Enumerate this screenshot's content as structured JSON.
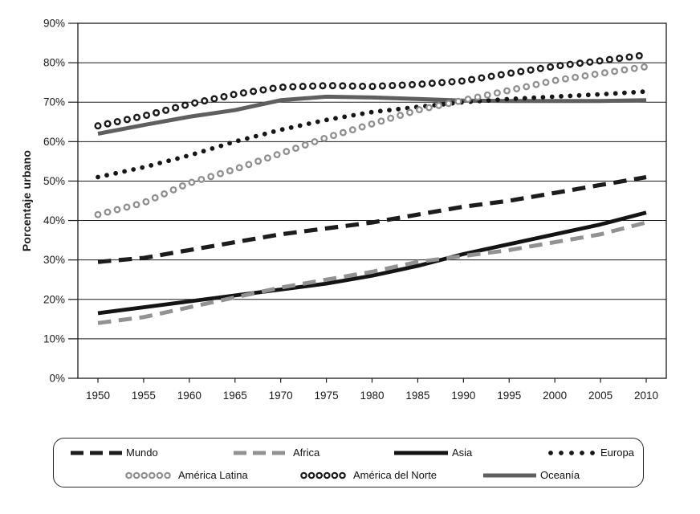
{
  "chart_data": {
    "type": "line",
    "title": "",
    "ylabel": "Porcentaje urbano",
    "xlabel": "",
    "ylim": [
      0,
      90
    ],
    "y_tick_step": 10,
    "y_tick_labels": [
      "0%",
      "10%",
      "20%",
      "30%",
      "40%",
      "50%",
      "60%",
      "70%",
      "80%",
      "90%"
    ],
    "x": [
      1950,
      1955,
      1960,
      1965,
      1970,
      1975,
      1980,
      1985,
      1990,
      1995,
      2000,
      2005,
      2010
    ],
    "x_tick_labels": [
      "1950",
      "1955",
      "1960",
      "1965",
      "1970",
      "1975",
      "1980",
      "1985",
      "1990",
      "1995",
      "2000",
      "2005",
      "2010"
    ],
    "grid": true,
    "legend_position": "bottom",
    "series": [
      {
        "name": "Mundo",
        "style": "dash",
        "color": "#1c1c1c",
        "values": [
          29.5,
          30.5,
          32.5,
          34.5,
          36.5,
          38,
          39.5,
          41.5,
          43.5,
          45,
          47,
          49,
          51
        ]
      },
      {
        "name": "Africa",
        "style": "dash",
        "color": "#929292",
        "values": [
          14,
          15.5,
          18,
          20.5,
          23,
          25,
          27,
          29.5,
          31,
          32.5,
          34.5,
          36.5,
          39.5
        ]
      },
      {
        "name": "Asia",
        "style": "solid",
        "color": "#141414",
        "values": [
          16.5,
          18,
          19.5,
          21,
          22.5,
          24,
          26,
          28.5,
          31.5,
          34,
          36.5,
          39,
          42
        ]
      },
      {
        "name": "Europa",
        "style": "dot",
        "color": "#161616",
        "values": [
          51,
          53.5,
          56.5,
          60,
          63,
          65.5,
          67.5,
          68.8,
          70,
          70.8,
          71.4,
          72,
          72.7
        ]
      },
      {
        "name": "América Latina",
        "style": "ring",
        "color": "#8f8f8f",
        "values": [
          41.5,
          44.5,
          49.5,
          53,
          57,
          61,
          64.5,
          68,
          70.5,
          73,
          75.5,
          77.3,
          79
        ]
      },
      {
        "name": "América del Norte",
        "style": "ring",
        "color": "#1a1a1a",
        "values": [
          64,
          66.5,
          69.5,
          72,
          73.8,
          74.2,
          74,
          74.5,
          75.4,
          77.3,
          79.1,
          80.5,
          82
        ]
      },
      {
        "name": "Oceanía",
        "style": "solid",
        "color": "#5f5f5f",
        "values": [
          62,
          64.2,
          66.3,
          68,
          70.5,
          71.4,
          71.2,
          70.8,
          70.4,
          70.3,
          70.3,
          70.3,
          70.5
        ]
      }
    ],
    "legend_rows": [
      [
        0,
        1,
        2,
        3
      ],
      [
        4,
        5,
        6
      ]
    ]
  }
}
